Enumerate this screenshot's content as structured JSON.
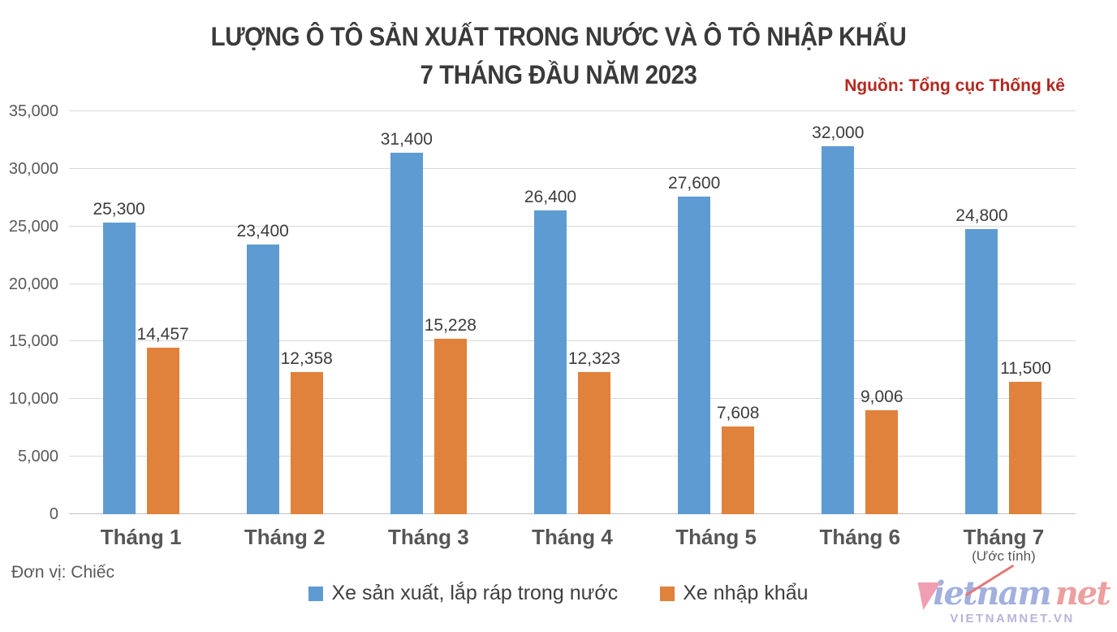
{
  "title": {
    "line1": "LƯỢNG Ô TÔ SẢN XUẤT TRONG NƯỚC VÀ Ô TÔ NHẬP KHẨU",
    "line2": "7 THÁNG ĐẦU NĂM 2023"
  },
  "source": "Nguồn: Tổng cục Thống kê",
  "unit_note": "Đơn vị: Chiếc",
  "chart_data": {
    "type": "bar",
    "categories": [
      "Tháng 1",
      "Tháng 2",
      "Tháng 3",
      "Tháng 4",
      "Tháng 5",
      "Tháng 6",
      "Tháng 7"
    ],
    "category_note": {
      "index": 6,
      "text": "(Ước tính)"
    },
    "series": [
      {
        "name": "Xe sản xuất, lắp ráp trong nước",
        "color": "#5f9bd3",
        "values": [
          25300,
          23400,
          31400,
          26400,
          27600,
          32000,
          24800
        ]
      },
      {
        "name": "Xe nhập khẩu",
        "color": "#e0813c",
        "values": [
          14457,
          12358,
          15228,
          12323,
          7608,
          9006,
          11500
        ]
      }
    ],
    "ylim": [
      0,
      35000
    ],
    "ytick_step": 5000,
    "grid": true,
    "legend_position": "bottom",
    "value_labels": true,
    "colors": {
      "grid": "#d9d9d9",
      "axis_text": "#595959",
      "label_text": "#3c3c3c"
    }
  },
  "watermark": {
    "mid": "ietnam",
    "suffix": "net",
    "subtext": "VIETNAMNET.VN"
  }
}
